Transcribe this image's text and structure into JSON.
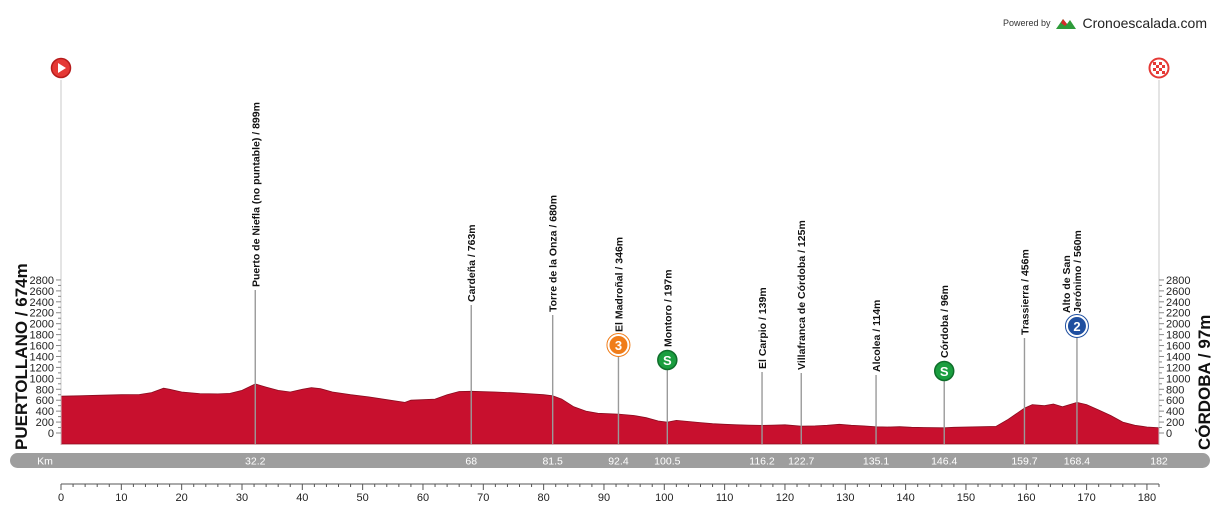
{
  "branding": {
    "powered_by": "Powered by",
    "site": "Cronoescalada.com"
  },
  "start_label": "PUERTOLLANO / 674m",
  "finish_label": "CÓRDOBA / 97m",
  "colors": {
    "profile": "#c8102e",
    "km_bar": "#9e9e9e",
    "sprint": "#1a9e3f",
    "kom_cat3": "#f07d1a",
    "kom_cat2": "#1f4fa0",
    "start_icon": "#e53935",
    "finish_icon": "#e53935"
  },
  "chart_data": {
    "type": "area",
    "xlabel": "",
    "ylabel": "",
    "xlim": [
      0,
      182
    ],
    "ylim": [
      0,
      2900
    ],
    "x_ticks": [
      0,
      10,
      20,
      30,
      40,
      50,
      60,
      70,
      80,
      90,
      100,
      110,
      120,
      130,
      140,
      150,
      160,
      170,
      180
    ],
    "y_ticks": [
      0,
      200,
      400,
      600,
      800,
      1000,
      1200,
      1400,
      1600,
      1800,
      2000,
      2200,
      2400,
      2600,
      2800
    ],
    "km_bar_label": "Km",
    "km_bar_ticks": [
      "32.2",
      "68",
      "81.5",
      "92.4",
      "100.5",
      "116.2",
      "122.7",
      "135.1",
      "146.4",
      "159.7",
      "168.4",
      "182"
    ],
    "profile": [
      [
        0,
        674
      ],
      [
        3,
        680
      ],
      [
        6,
        690
      ],
      [
        10,
        700
      ],
      [
        13,
        705
      ],
      [
        15,
        740
      ],
      [
        17,
        820
      ],
      [
        18,
        800
      ],
      [
        20,
        750
      ],
      [
        23,
        720
      ],
      [
        26,
        715
      ],
      [
        28,
        725
      ],
      [
        30,
        780
      ],
      [
        32.2,
        899
      ],
      [
        34,
        840
      ],
      [
        36,
        780
      ],
      [
        38,
        750
      ],
      [
        40,
        800
      ],
      [
        41.5,
        830
      ],
      [
        43,
        810
      ],
      [
        45,
        750
      ],
      [
        48,
        700
      ],
      [
        51,
        660
      ],
      [
        54,
        610
      ],
      [
        57,
        560
      ],
      [
        58,
        600
      ],
      [
        60,
        610
      ],
      [
        62,
        620
      ],
      [
        64,
        700
      ],
      [
        66,
        760
      ],
      [
        68,
        763
      ],
      [
        70,
        755
      ],
      [
        72,
        750
      ],
      [
        75,
        735
      ],
      [
        78,
        715
      ],
      [
        80,
        700
      ],
      [
        81.5,
        680
      ],
      [
        83,
        620
      ],
      [
        85,
        480
      ],
      [
        87,
        400
      ],
      [
        89,
        360
      ],
      [
        92.4,
        346
      ],
      [
        95,
        320
      ],
      [
        97,
        280
      ],
      [
        99,
        220
      ],
      [
        100.5,
        197
      ],
      [
        102,
        230
      ],
      [
        104,
        210
      ],
      [
        106,
        190
      ],
      [
        108,
        170
      ],
      [
        110,
        160
      ],
      [
        112,
        150
      ],
      [
        114,
        145
      ],
      [
        116.2,
        139
      ],
      [
        118,
        145
      ],
      [
        120,
        150
      ],
      [
        122.7,
        125
      ],
      [
        125,
        130
      ],
      [
        127,
        140
      ],
      [
        129,
        160
      ],
      [
        131,
        140
      ],
      [
        133,
        130
      ],
      [
        135.1,
        114
      ],
      [
        137,
        110
      ],
      [
        139,
        115
      ],
      [
        141,
        105
      ],
      [
        143,
        100
      ],
      [
        146.4,
        96
      ],
      [
        148,
        105
      ],
      [
        150,
        110
      ],
      [
        153,
        115
      ],
      [
        155,
        120
      ],
      [
        157,
        250
      ],
      [
        159.7,
        456
      ],
      [
        161,
        520
      ],
      [
        163,
        500
      ],
      [
        164.5,
        530
      ],
      [
        166,
        480
      ],
      [
        168.4,
        560
      ],
      [
        170,
        520
      ],
      [
        172,
        420
      ],
      [
        174,
        320
      ],
      [
        176,
        200
      ],
      [
        178,
        140
      ],
      [
        180,
        110
      ],
      [
        182,
        97
      ]
    ],
    "points": [
      {
        "km": 32.2,
        "label": "Puerto de Niefla (no puntable) / 899m",
        "marker": "none"
      },
      {
        "km": 68,
        "label": "Cardeña / 763m",
        "marker": "none"
      },
      {
        "km": 81.5,
        "label": "Torre de la Onza / 680m",
        "marker": "none"
      },
      {
        "km": 92.4,
        "label": "El Madroñal / 346m",
        "marker": "kom-cat3"
      },
      {
        "km": 100.5,
        "label": "Montoro / 197m",
        "marker": "sprint"
      },
      {
        "km": 116.2,
        "label": "El Carpio / 139m",
        "marker": "none"
      },
      {
        "km": 122.7,
        "label": "Villafranca de Córdoba / 125m",
        "marker": "none"
      },
      {
        "km": 135.1,
        "label": "Alcolea / 114m",
        "marker": "none"
      },
      {
        "km": 146.4,
        "label": "Córdoba / 96m",
        "marker": "sprint"
      },
      {
        "km": 159.7,
        "label": "Trassierra / 456m",
        "marker": "none"
      },
      {
        "km": 168.4,
        "label": "Alto de San|Jerónimo / 560m",
        "marker": "kom-cat2"
      }
    ],
    "markers": {
      "sprint_text": "S",
      "kom_cat2_text": "2",
      "kom_cat3_text": "3"
    }
  }
}
